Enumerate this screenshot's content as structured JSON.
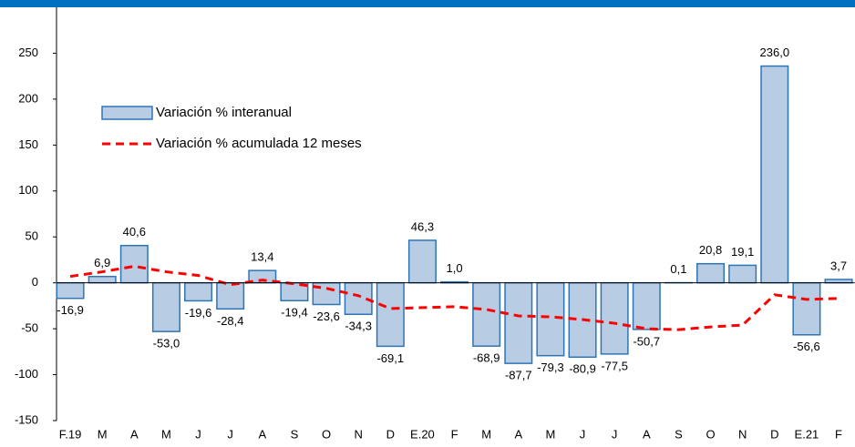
{
  "chart_data": {
    "type": "bar",
    "categories": [
      "F.19",
      "M",
      "A",
      "M",
      "J",
      "J",
      "A",
      "S",
      "O",
      "N",
      "D",
      "E.20",
      "F",
      "M",
      "A",
      "M",
      "J",
      "J",
      "A",
      "S",
      "O",
      "N",
      "D",
      "E.21",
      "F"
    ],
    "series": [
      {
        "name": "Variación % interanual",
        "type": "bar",
        "color": "#b8cce4",
        "edge": "#2e75b6",
        "values": [
          -16.9,
          6.9,
          40.6,
          -53.0,
          -19.6,
          -28.4,
          13.4,
          -19.4,
          -23.6,
          -34.3,
          -69.1,
          46.3,
          1.0,
          -68.9,
          -87.7,
          -79.3,
          -80.9,
          -77.5,
          -50.7,
          0.1,
          20.8,
          19.1,
          236.0,
          -56.6,
          3.7
        ],
        "value_labels": [
          "-16,9",
          "6,9",
          "40,6",
          "-53,0",
          "-19,6",
          "-28,4",
          "13,4",
          "-19,4",
          "-23,6",
          "-34,3",
          "-69,1",
          "46,3",
          "1,0",
          "-68,9",
          "-87,7",
          "-79,3",
          "-80,9",
          "-77,5",
          "-50,7",
          "0,1",
          "20,8",
          "19,1",
          "236,0",
          "-56,6",
          "3,7"
        ]
      },
      {
        "name": "Variación % acumulada 12 meses",
        "type": "line",
        "color": "#ff0000",
        "dashed": true,
        "values": [
          7,
          12,
          18,
          12,
          8,
          -2,
          3,
          -1,
          -6,
          -14,
          -28,
          -27,
          -26,
          -29,
          -36,
          -37,
          -40,
          -44,
          -50,
          -51,
          -48,
          -46,
          -13,
          -18,
          -17
        ]
      }
    ],
    "ylim": [
      -150,
      300
    ],
    "yticks": [
      -150,
      -100,
      -50,
      0,
      50,
      100,
      150,
      200,
      250
    ],
    "grid": false
  }
}
